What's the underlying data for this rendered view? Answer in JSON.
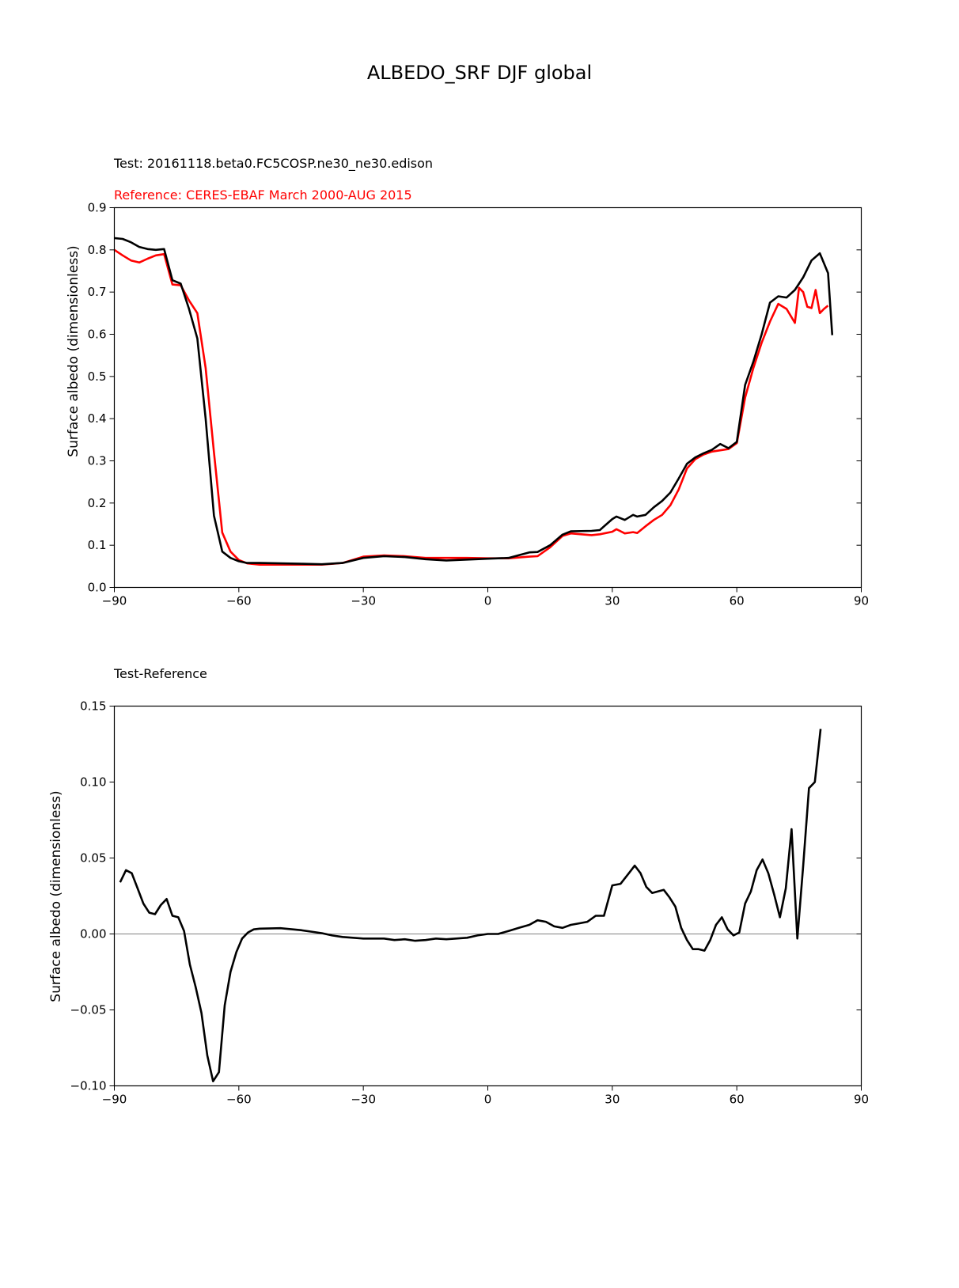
{
  "figure": {
    "title": "ALBEDO_SRF DJF global"
  },
  "chart_data": [
    {
      "type": "line",
      "test_label": "Test: 20161118.beta0.FC5COSP.ne30_ne30.edison",
      "reference_label": "Reference: CERES-EBAF March 2000-AUG 2015",
      "reference_color": "#ff0000",
      "test_color": "#000000",
      "xlabel": "",
      "ylabel": "Surface albedo (dimensionless)",
      "xlim": [
        -90,
        90
      ],
      "ylim": [
        0.0,
        0.9
      ],
      "xticks": [
        -90,
        -60,
        -30,
        0,
        30,
        60,
        90
      ],
      "xtick_labels": [
        "−90",
        "−60",
        "−30",
        "0",
        "30",
        "60",
        "90"
      ],
      "yticks": [
        0.0,
        0.1,
        0.2,
        0.3,
        0.4,
        0.5,
        0.6,
        0.7,
        0.8,
        0.9
      ],
      "ytick_labels": [
        "0.0",
        "0.1",
        "0.2",
        "0.3",
        "0.4",
        "0.5",
        "0.6",
        "0.7",
        "0.8",
        "0.9"
      ],
      "grid": false,
      "series": [
        {
          "role": "test",
          "x": [
            -90,
            -88,
            -86,
            -84,
            -82,
            -80,
            -78,
            -76,
            -74,
            -72,
            -70,
            -68,
            -66,
            -64,
            -62,
            -60,
            -58,
            -55,
            -50,
            -45,
            -40,
            -35,
            -30,
            -25,
            -20,
            -15,
            -10,
            -5,
            0,
            5,
            10,
            12,
            15,
            18,
            20,
            25,
            27,
            30,
            31,
            33,
            35,
            36,
            38,
            40,
            42,
            44,
            46,
            48,
            50,
            52,
            54,
            56,
            58,
            60,
            62,
            64,
            66,
            68,
            70,
            72,
            74,
            76,
            78,
            80,
            82,
            83
          ],
          "y": [
            0.828,
            0.826,
            0.818,
            0.807,
            0.802,
            0.8,
            0.802,
            0.728,
            0.72,
            0.66,
            0.59,
            0.4,
            0.17,
            0.085,
            0.07,
            0.062,
            0.058,
            0.058,
            0.057,
            0.056,
            0.055,
            0.058,
            0.07,
            0.074,
            0.072,
            0.067,
            0.064,
            0.066,
            0.068,
            0.07,
            0.083,
            0.084,
            0.1,
            0.125,
            0.133,
            0.134,
            0.136,
            0.162,
            0.168,
            0.16,
            0.172,
            0.168,
            0.172,
            0.19,
            0.205,
            0.225,
            0.258,
            0.293,
            0.308,
            0.318,
            0.326,
            0.34,
            0.33,
            0.345,
            0.48,
            0.535,
            0.6,
            0.675,
            0.69,
            0.687,
            0.705,
            0.735,
            0.775,
            0.792,
            0.745,
            0.598
          ]
        },
        {
          "role": "reference",
          "x": [
            -90,
            -88,
            -86,
            -84,
            -82,
            -80,
            -78,
            -76,
            -74,
            -72,
            -70,
            -68,
            -66,
            -64,
            -62,
            -60,
            -58,
            -55,
            -50,
            -45,
            -40,
            -35,
            -30,
            -25,
            -20,
            -15,
            -10,
            -5,
            0,
            5,
            10,
            12,
            15,
            18,
            20,
            25,
            27,
            30,
            31,
            33,
            35,
            36,
            38,
            40,
            42,
            44,
            46,
            48,
            50,
            52,
            54,
            56,
            58,
            60,
            62,
            64,
            66,
            68,
            70,
            72,
            74,
            75,
            76,
            77,
            78,
            79,
            80,
            81,
            82
          ],
          "y": [
            0.8,
            0.787,
            0.775,
            0.77,
            0.779,
            0.787,
            0.79,
            0.718,
            0.716,
            0.68,
            0.65,
            0.52,
            0.32,
            0.13,
            0.085,
            0.065,
            0.057,
            0.054,
            0.054,
            0.054,
            0.054,
            0.058,
            0.073,
            0.076,
            0.074,
            0.07,
            0.07,
            0.07,
            0.069,
            0.069,
            0.073,
            0.074,
            0.095,
            0.122,
            0.128,
            0.124,
            0.126,
            0.132,
            0.138,
            0.128,
            0.131,
            0.129,
            0.145,
            0.16,
            0.172,
            0.195,
            0.232,
            0.282,
            0.304,
            0.315,
            0.322,
            0.325,
            0.328,
            0.342,
            0.45,
            0.52,
            0.58,
            0.63,
            0.672,
            0.66,
            0.627,
            0.71,
            0.7,
            0.665,
            0.662,
            0.705,
            0.65,
            0.66,
            0.668
          ]
        }
      ]
    },
    {
      "type": "line",
      "subtitle": "Test-Reference",
      "xlabel": "",
      "ylabel": "Surface albedo (dimensionless)",
      "xlim": [
        -90,
        90
      ],
      "ylim": [
        -0.1,
        0.15
      ],
      "xticks": [
        -90,
        -60,
        -30,
        0,
        30,
        60,
        90
      ],
      "xtick_labels": [
        "−90",
        "−60",
        "−30",
        "0",
        "30",
        "60",
        "90"
      ],
      "yticks": [
        -0.1,
        -0.05,
        0.0,
        0.05,
        0.1,
        0.15
      ],
      "ytick_labels": [
        "−0.10",
        "−0.05",
        "0.00",
        "0.05",
        "0.10",
        "0.15"
      ],
      "zero_line_color": "#808080",
      "grid": false,
      "series": [
        {
          "role": "difference",
          "x": [
            -88.6,
            -87.2,
            -85.8,
            -84.4,
            -83.0,
            -81.6,
            -80.2,
            -78.8,
            -77.4,
            -76.0,
            -74.6,
            -73.2,
            -71.8,
            -70.4,
            -69.0,
            -67.6,
            -66.2,
            -64.8,
            -63.4,
            -62.0,
            -60.6,
            -59.2,
            -57.8,
            -56.4,
            -55.0,
            -50.0,
            -45.0,
            -40.0,
            -37.5,
            -35.0,
            -32.5,
            -30.0,
            -25.0,
            -22.5,
            -20.0,
            -17.5,
            -15.0,
            -12.5,
            -10.0,
            -5.0,
            -2.5,
            0.0,
            2.5,
            5.0,
            7.5,
            10.0,
            12.0,
            14.0,
            16.0,
            18.0,
            20.0,
            22.0,
            24.0,
            26.0,
            28.0,
            30.0,
            32.0,
            34.0,
            35.4,
            36.8,
            38.2,
            39.6,
            41.0,
            42.4,
            43.8,
            45.2,
            46.6,
            48.0,
            49.4,
            50.8,
            52.2,
            53.6,
            55.0,
            56.4,
            57.8,
            59.2,
            60.6,
            62.0,
            63.4,
            64.8,
            66.2,
            67.6,
            69.0,
            70.4,
            71.8,
            73.2,
            74.6,
            76.0,
            77.4,
            78.8,
            80.2
          ],
          "y": [
            0.034,
            0.042,
            0.04,
            0.03,
            0.02,
            0.014,
            0.013,
            0.019,
            0.023,
            0.012,
            0.011,
            0.002,
            -0.02,
            -0.035,
            -0.052,
            -0.08,
            -0.097,
            -0.091,
            -0.047,
            -0.025,
            -0.012,
            -0.003,
            0.001,
            0.003,
            0.0035,
            0.0038,
            0.0025,
            0.0005,
            -0.001,
            -0.002,
            -0.0025,
            -0.003,
            -0.003,
            -0.004,
            -0.0035,
            -0.0045,
            -0.004,
            -0.003,
            -0.0035,
            -0.0025,
            -0.001,
            0.0,
            0.0,
            0.002,
            0.004,
            0.006,
            0.009,
            0.008,
            0.005,
            0.004,
            0.006,
            0.007,
            0.008,
            0.012,
            0.012,
            0.032,
            0.033,
            0.04,
            0.045,
            0.04,
            0.031,
            0.027,
            0.028,
            0.029,
            0.024,
            0.018,
            0.004,
            -0.004,
            -0.01,
            -0.01,
            -0.011,
            -0.004,
            0.006,
            0.011,
            0.003,
            -0.001,
            0.001,
            0.02,
            0.028,
            0.042,
            0.049,
            0.04,
            0.026,
            0.011,
            0.03,
            0.069,
            -0.003,
            0.045,
            0.096,
            0.1,
            0.135
          ]
        }
      ]
    }
  ]
}
